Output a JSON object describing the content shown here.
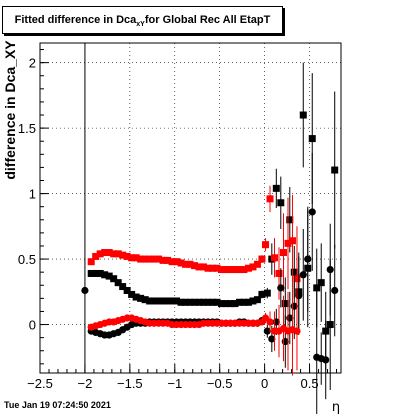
{
  "header": {
    "title_pre": "Fitted difference in Dca",
    "title_sub": "xY",
    "title_post": " for Global Rec All EtapT"
  },
  "footer": {
    "timestamp": "Tue Jan 19 07:24:50 2021"
  },
  "chart_data": {
    "type": "scatter",
    "title": "Fitted difference in Dca_xY for Global Rec All EtapT",
    "xlabel": "η",
    "ylabel": "difference in Dca_XY",
    "xlim": [
      -2.5,
      0.85
    ],
    "ylim": [
      -0.37,
      2.15
    ],
    "x_ticks": [
      -2.5,
      -2,
      -1.5,
      -1,
      -0.5,
      0,
      0.5
    ],
    "x_tick_labels": [
      "−2.5",
      "−2",
      "−1.5",
      "−1",
      "−0.5",
      "0",
      "0.5"
    ],
    "y_ticks": [
      0,
      0.5,
      1,
      1.5,
      2
    ],
    "y_tick_labels": [
      "0",
      "0.5",
      "1",
      "1.5",
      "2"
    ],
    "grid": true,
    "vertical_reference_line_x": -2.0,
    "colors": {
      "series_black": "#000000",
      "series_red": "#ff0000"
    },
    "series": [
      {
        "color": "#000000",
        "marker": "square",
        "x": [
          -1.93,
          -1.88,
          -1.83,
          -1.78,
          -1.73,
          -1.68,
          -1.63,
          -1.58,
          -1.53,
          -1.48,
          -1.43,
          -1.38,
          -1.33,
          -1.28,
          -1.23,
          -1.18,
          -1.13,
          -1.08,
          -1.03,
          -0.98,
          -0.93,
          -0.88,
          -0.83,
          -0.78,
          -0.73,
          -0.68,
          -0.63,
          -0.58,
          -0.53,
          -0.48,
          -0.43,
          -0.38,
          -0.33,
          -0.28,
          -0.23,
          -0.18,
          -0.13,
          -0.08,
          -0.03,
          0.03,
          0.08,
          0.13,
          0.18,
          0.23,
          0.28,
          0.33,
          0.38,
          0.43,
          0.48,
          0.53,
          0.58,
          0.63,
          0.68,
          0.73,
          0.78,
          0.83
        ],
        "y": [
          0.39,
          0.39,
          0.39,
          0.38,
          0.37,
          0.35,
          0.32,
          0.29,
          0.26,
          0.23,
          0.21,
          0.2,
          0.19,
          0.18,
          0.18,
          0.18,
          0.18,
          0.18,
          0.18,
          0.18,
          0.17,
          0.17,
          0.17,
          0.17,
          0.17,
          0.17,
          0.17,
          0.17,
          0.17,
          0.16,
          0.16,
          0.16,
          0.16,
          0.17,
          0.17,
          0.17,
          0.18,
          0.19,
          0.23,
          0.24,
          0.5,
          1.04,
          0.93,
          0.16,
          0.8,
          0.4,
          0.25,
          1.6,
          0.43,
          1.42,
          0.28,
          0.32,
          -0.05,
          0.0,
          1.18,
          null
        ],
        "err": [
          0.01,
          0.01,
          0.01,
          0.01,
          0.01,
          0.01,
          0.01,
          0.01,
          0.01,
          0.01,
          0.01,
          0.01,
          0.01,
          0.01,
          0.01,
          0.01,
          0.01,
          0.01,
          0.01,
          0.01,
          0.01,
          0.01,
          0.01,
          0.01,
          0.01,
          0.01,
          0.01,
          0.01,
          0.01,
          0.01,
          0.01,
          0.01,
          0.01,
          0.01,
          0.01,
          0.01,
          0.02,
          0.02,
          0.03,
          0.04,
          0.12,
          0.15,
          0.2,
          0.2,
          0.25,
          0.2,
          0.3,
          0.4,
          0.45,
          0.5,
          0.3,
          0.3,
          0.3,
          0.5,
          0.6,
          null
        ]
      },
      {
        "color": "#ff0000",
        "marker": "square",
        "x": [
          -1.93,
          -1.88,
          -1.83,
          -1.78,
          -1.73,
          -1.68,
          -1.63,
          -1.58,
          -1.53,
          -1.48,
          -1.43,
          -1.38,
          -1.33,
          -1.28,
          -1.23,
          -1.18,
          -1.13,
          -1.08,
          -1.03,
          -0.98,
          -0.93,
          -0.88,
          -0.83,
          -0.78,
          -0.73,
          -0.68,
          -0.63,
          -0.58,
          -0.53,
          -0.48,
          -0.43,
          -0.38,
          -0.33,
          -0.28,
          -0.23,
          -0.18,
          -0.13,
          -0.08,
          -0.03,
          0.01,
          0.06,
          0.11,
          0.16,
          0.21,
          0.26,
          0.31,
          0.36
        ],
        "y": [
          0.48,
          0.52,
          0.54,
          0.55,
          0.55,
          0.54,
          0.54,
          0.53,
          0.52,
          0.51,
          0.51,
          0.5,
          0.5,
          0.5,
          0.5,
          0.5,
          0.49,
          0.49,
          0.48,
          0.48,
          0.47,
          0.46,
          0.46,
          0.45,
          0.44,
          0.44,
          0.43,
          0.43,
          0.43,
          0.42,
          0.42,
          0.42,
          0.42,
          0.42,
          0.42,
          0.43,
          0.44,
          0.46,
          0.5,
          0.61,
          0.96,
          0.51,
          0.39,
          0.55,
          0.62,
          0.64,
          0.35
        ],
        "err": [
          0.01,
          0.01,
          0.01,
          0.01,
          0.01,
          0.01,
          0.01,
          0.01,
          0.01,
          0.01,
          0.01,
          0.01,
          0.01,
          0.01,
          0.01,
          0.01,
          0.01,
          0.01,
          0.01,
          0.01,
          0.01,
          0.01,
          0.01,
          0.01,
          0.01,
          0.01,
          0.01,
          0.01,
          0.01,
          0.01,
          0.01,
          0.01,
          0.01,
          0.01,
          0.01,
          0.01,
          0.01,
          0.02,
          0.03,
          0.05,
          0.1,
          0.15,
          0.2,
          0.3,
          0.35,
          0.35,
          0.4
        ]
      },
      {
        "color": "#000000",
        "marker": "circle",
        "x": [
          -2.0,
          -1.93,
          -1.88,
          -1.83,
          -1.78,
          -1.73,
          -1.68,
          -1.63,
          -1.58,
          -1.53,
          -1.48,
          -1.43,
          -1.38,
          -1.33,
          -1.28,
          -1.23,
          -1.18,
          -1.13,
          -1.08,
          -1.03,
          -0.98,
          -0.93,
          -0.88,
          -0.83,
          -0.78,
          -0.73,
          -0.68,
          -0.63,
          -0.58,
          -0.53,
          -0.48,
          -0.43,
          -0.38,
          -0.33,
          -0.28,
          -0.23,
          -0.18,
          -0.13,
          -0.08,
          -0.03,
          0.03,
          0.08,
          0.13,
          0.18,
          0.23,
          0.28,
          0.33,
          0.38,
          0.43,
          0.48,
          0.53,
          0.58,
          0.63,
          0.68,
          0.73,
          0.78,
          0.83
        ],
        "y": [
          0.26,
          -0.05,
          -0.06,
          -0.07,
          -0.08,
          -0.08,
          -0.07,
          -0.06,
          -0.04,
          -0.02,
          0.0,
          0.01,
          0.01,
          0.01,
          0.02,
          0.02,
          0.02,
          0.02,
          0.02,
          0.02,
          0.02,
          0.02,
          0.02,
          0.02,
          0.02,
          0.02,
          0.02,
          0.02,
          0.02,
          0.02,
          0.01,
          0.01,
          0.01,
          0.01,
          0.02,
          0.02,
          0.01,
          0.01,
          0.01,
          0.03,
          -0.05,
          -0.11,
          0.02,
          0.28,
          -0.13,
          0.05,
          0.14,
          0.22,
          0.38,
          0.5,
          0.86,
          -0.25,
          -0.26,
          -0.27,
          0.42,
          0.26,
          null
        ],
        "err": [
          0.02,
          0.01,
          0.01,
          0.01,
          0.01,
          0.01,
          0.01,
          0.01,
          0.01,
          0.01,
          0.01,
          0.01,
          0.01,
          0.01,
          0.01,
          0.01,
          0.01,
          0.01,
          0.01,
          0.01,
          0.01,
          0.01,
          0.01,
          0.01,
          0.01,
          0.01,
          0.01,
          0.01,
          0.01,
          0.01,
          0.01,
          0.01,
          0.01,
          0.01,
          0.01,
          0.01,
          0.01,
          0.01,
          0.02,
          0.02,
          0.05,
          0.1,
          0.1,
          0.15,
          0.2,
          0.2,
          0.25,
          0.3,
          0.35,
          0.4,
          0.45,
          0.5,
          0.2,
          0.3,
          0.35,
          0.35,
          null
        ]
      },
      {
        "color": "#ff0000",
        "marker": "circle",
        "x": [
          -1.93,
          -1.88,
          -1.83,
          -1.78,
          -1.73,
          -1.68,
          -1.63,
          -1.58,
          -1.53,
          -1.48,
          -1.43,
          -1.38,
          -1.33,
          -1.28,
          -1.23,
          -1.18,
          -1.13,
          -1.08,
          -1.03,
          -0.98,
          -0.93,
          -0.88,
          -0.83,
          -0.78,
          -0.73,
          -0.68,
          -0.63,
          -0.58,
          -0.53,
          -0.48,
          -0.43,
          -0.38,
          -0.33,
          -0.28,
          -0.23,
          -0.18,
          -0.13,
          -0.08,
          -0.03,
          0.01,
          0.06,
          0.11,
          0.16,
          0.21,
          0.26,
          0.31,
          0.36
        ],
        "y": [
          -0.02,
          -0.01,
          0.0,
          0.01,
          0.02,
          0.02,
          0.03,
          0.04,
          0.05,
          0.05,
          0.04,
          0.03,
          0.02,
          0.01,
          0.01,
          0.01,
          0.01,
          0.01,
          0.0,
          0.0,
          0.0,
          0.0,
          0.0,
          0.0,
          0.0,
          0.01,
          0.01,
          0.01,
          0.01,
          0.01,
          0.01,
          0.01,
          0.01,
          0.01,
          0.01,
          0.01,
          0.01,
          0.01,
          0.02,
          0.05,
          0.02,
          -0.05,
          -0.05,
          -0.03,
          -0.05,
          -0.04,
          -0.05
        ],
        "err": [
          0.01,
          0.01,
          0.01,
          0.01,
          0.01,
          0.01,
          0.01,
          0.01,
          0.01,
          0.01,
          0.01,
          0.01,
          0.01,
          0.01,
          0.01,
          0.01,
          0.01,
          0.01,
          0.01,
          0.01,
          0.01,
          0.01,
          0.01,
          0.01,
          0.01,
          0.01,
          0.01,
          0.01,
          0.01,
          0.01,
          0.01,
          0.01,
          0.01,
          0.01,
          0.01,
          0.01,
          0.01,
          0.01,
          0.02,
          0.04,
          0.08,
          0.15,
          0.2,
          0.25,
          0.3,
          0.35,
          0.3
        ]
      }
    ]
  }
}
